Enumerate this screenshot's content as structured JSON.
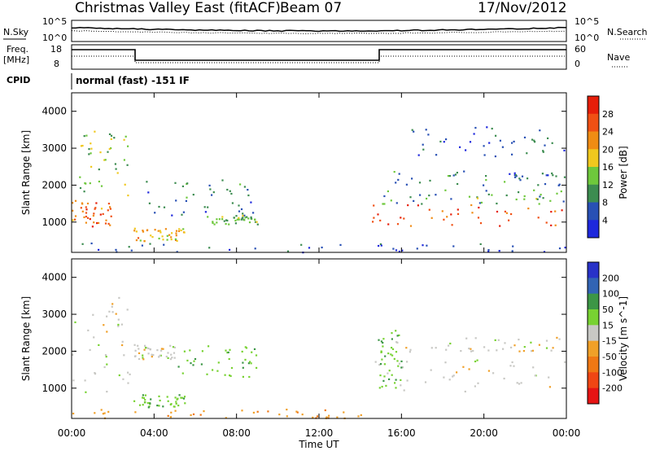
{
  "header": {
    "title": "Christmas Valley East (fitACF)",
    "beam": "Beam 07",
    "date": "17/Nov/2012"
  },
  "top_panels": {
    "nsky_label": "N.Sky",
    "nsky_ticks": [
      "10^5",
      "10^0"
    ],
    "nsearch_label": "N.Search",
    "freq_label_1": "Freq.",
    "freq_label_2": "[MHz]",
    "freq_ticks": [
      "18",
      "8"
    ],
    "nave_label": "Nave",
    "nave_ticks": [
      "60",
      "0"
    ],
    "cpid_label": "CPID",
    "cpid_value": "normal (fast) -151 IF"
  },
  "chart_data": [
    {
      "type": "heatmap",
      "panel": "power",
      "ylabel": "Slant Range [km]",
      "xlabel": "Time UT",
      "xlim": [
        "00:00",
        "00:00"
      ],
      "x_ticks": [
        "00:00",
        "04:00",
        "08:00",
        "12:00",
        "16:00",
        "20:00",
        "00:00"
      ],
      "ylim": [
        180,
        4500
      ],
      "y_ticks": [
        1000,
        2000,
        3000,
        4000
      ],
      "colorbar": {
        "label": "Power [dB]",
        "ticks": [
          4,
          8,
          12,
          16,
          20,
          24,
          28
        ],
        "colors": [
          "#1e28dc",
          "#2850b4",
          "#3c8c50",
          "#6ec83c",
          "#f0c81e",
          "#f08c14",
          "#f05014",
          "#e61e0a"
        ]
      },
      "regions": [
        {
          "t0": 0.0,
          "t1": 2.0,
          "r0": 900,
          "r1": 1600,
          "level": 24
        },
        {
          "t0": 0.3,
          "t1": 2.8,
          "r0": 1700,
          "r1": 3500,
          "level": 14
        },
        {
          "t0": 3.0,
          "t1": 8.8,
          "r0": 1200,
          "r1": 2200,
          "level": 8
        },
        {
          "t0": 3.0,
          "t1": 5.5,
          "r0": 500,
          "r1": 850,
          "level": 20
        },
        {
          "t0": 6.5,
          "t1": 9.0,
          "r0": 950,
          "r1": 1200,
          "level": 14
        },
        {
          "t0": 0.0,
          "t1": 24.0,
          "r0": 200,
          "r1": 450,
          "level": 6
        },
        {
          "t0": 14.5,
          "t1": 24.0,
          "r0": 900,
          "r1": 1500,
          "level": 26
        },
        {
          "t0": 15.0,
          "t1": 24.0,
          "r0": 1500,
          "r1": 1900,
          "level": 12
        },
        {
          "t0": 15.5,
          "t1": 24.0,
          "r0": 2000,
          "r1": 2400,
          "level": 8
        },
        {
          "t0": 16.0,
          "t1": 24.0,
          "r0": 2800,
          "r1": 3600,
          "level": 6
        }
      ]
    },
    {
      "type": "heatmap",
      "panel": "velocity",
      "ylabel": "Slant Range [km]",
      "xlabel": "Time UT",
      "xlim": [
        "00:00",
        "00:00"
      ],
      "x_ticks": [
        "00:00",
        "04:00",
        "08:00",
        "12:00",
        "16:00",
        "20:00",
        "00:00"
      ],
      "ylim": [
        180,
        4500
      ],
      "y_ticks": [
        1000,
        2000,
        3000,
        4000
      ],
      "colorbar": {
        "label": "Velocity [m s^-1]",
        "ticks": [
          200,
          100,
          50,
          15,
          -15,
          -50,
          -100,
          -200
        ],
        "colors": [
          "#2832c8",
          "#3264b4",
          "#3c9646",
          "#78d232",
          "#c8c8c4",
          "#f0a028",
          "#f07814",
          "#f04614",
          "#e61414"
        ]
      },
      "regions": [
        {
          "t0": 0.0,
          "t1": 2.8,
          "r0": 900,
          "r1": 3500,
          "level": 0
        },
        {
          "t0": 3.0,
          "t1": 5.0,
          "r0": 1800,
          "r1": 2200,
          "level": 0
        },
        {
          "t0": 3.0,
          "t1": 5.5,
          "r0": 500,
          "r1": 850,
          "level": 40
        },
        {
          "t0": 5.0,
          "t1": 9.0,
          "r0": 1200,
          "r1": 2200,
          "level": 40
        },
        {
          "t0": 0.0,
          "t1": 14.5,
          "r0": 200,
          "r1": 450,
          "level": -40
        },
        {
          "t0": 14.5,
          "t1": 24.0,
          "r0": 900,
          "r1": 1800,
          "level": 0
        },
        {
          "t0": 15.0,
          "t1": 24.0,
          "r0": 2000,
          "r1": 2400,
          "level": 0
        },
        {
          "t0": 14.8,
          "t1": 16.0,
          "r0": 1000,
          "r1": 2600,
          "level": 40
        }
      ]
    }
  ]
}
